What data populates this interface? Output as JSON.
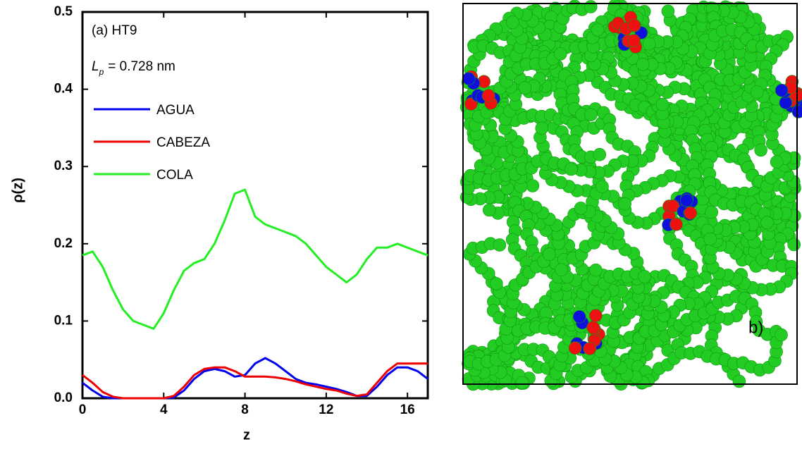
{
  "chart_data": {
    "type": "line",
    "xlabel": "z",
    "ylabel": "ρ(z)",
    "annotations": {
      "panel_a": "(a) HT9",
      "lp_symbol": "L",
      "lp_subscript": "p",
      "lp_value": "= 0.728 nm",
      "panel_b": "b)"
    },
    "x": [
      0,
      0.5,
      1,
      1.5,
      2,
      2.5,
      3,
      3.5,
      4,
      4.5,
      5,
      5.5,
      6,
      6.5,
      7,
      7.5,
      8,
      8.5,
      9,
      9.5,
      10,
      10.5,
      11,
      11.5,
      12,
      12.5,
      13,
      13.5,
      14,
      14.5,
      15,
      15.5,
      16,
      16.5,
      17
    ],
    "series": [
      {
        "name": "AGUA",
        "color": "#0000ee",
        "values": [
          0.02,
          0.01,
          0.002,
          0,
          0,
          0,
          0,
          0,
          0,
          0.001,
          0.01,
          0.025,
          0.035,
          0.038,
          0.035,
          0.028,
          0.03,
          0.045,
          0.052,
          0.045,
          0.035,
          0.025,
          0.02,
          0.018,
          0.015,
          0.012,
          0.008,
          0.003,
          0.003,
          0.015,
          0.03,
          0.04,
          0.04,
          0.035,
          0.025
        ]
      },
      {
        "name": "CABEZA",
        "color": "#ee0000",
        "values": [
          0.03,
          0.02,
          0.008,
          0.002,
          0,
          0,
          0,
          0,
          0,
          0.003,
          0.015,
          0.03,
          0.038,
          0.04,
          0.04,
          0.035,
          0.028,
          0.028,
          0.028,
          0.027,
          0.025,
          0.022,
          0.018,
          0.015,
          0.012,
          0.01,
          0.006,
          0.003,
          0.005,
          0.02,
          0.035,
          0.045,
          0.045,
          0.045,
          0.045
        ]
      },
      {
        "name": "COLA",
        "color": "#22ee22",
        "values": [
          0.185,
          0.19,
          0.17,
          0.14,
          0.115,
          0.1,
          0.095,
          0.09,
          0.11,
          0.14,
          0.165,
          0.175,
          0.18,
          0.2,
          0.23,
          0.265,
          0.27,
          0.235,
          0.225,
          0.22,
          0.215,
          0.21,
          0.2,
          0.185,
          0.17,
          0.16,
          0.15,
          0.16,
          0.18,
          0.195,
          0.195,
          0.2,
          0.195,
          0.19,
          0.185
        ]
      }
    ],
    "xlim": [
      0,
      17
    ],
    "xticks": [
      0,
      4,
      8,
      12,
      16
    ],
    "ylim": [
      0,
      0.5
    ],
    "yticks": [
      {
        "value": 0,
        "label": "0.0"
      },
      0.1,
      0.2,
      0.3,
      0.4,
      0.5
    ],
    "legend": "upper-left"
  }
}
